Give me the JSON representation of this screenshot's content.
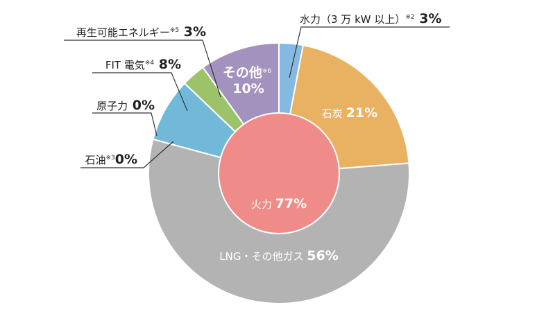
{
  "chart_data": {
    "type": "pie",
    "title": "",
    "outer_ring": [
      {
        "name": "水力（3 万 kW 以上）",
        "note": "※2",
        "value": 3,
        "value_label": "3%",
        "color": "#85b9e1"
      },
      {
        "name": "石炭",
        "note": "",
        "value": 21,
        "value_label": "21%",
        "color": "#e9b262"
      },
      {
        "name": "LNG・その他ガス",
        "note": "",
        "value": 56,
        "value_label": "56%",
        "color": "#b3b3b3"
      },
      {
        "name": "石油",
        "note": "※3",
        "value": 0,
        "value_label": "0%",
        "color": "#9a9a9a"
      },
      {
        "name": "原子力",
        "note": "",
        "value": 0,
        "value_label": "0%",
        "color": "#777777"
      },
      {
        "name": "FIT 電気",
        "note": "※4",
        "value": 8,
        "value_label": "8%",
        "color": "#72b9d9"
      },
      {
        "name": "再生可能エネルギー",
        "note": "※5",
        "value": 3,
        "value_label": "3%",
        "color": "#9dc36a"
      },
      {
        "name": "その他",
        "note": "※6",
        "value": 10,
        "value_label": "10%",
        "color": "#a292bd"
      }
    ],
    "inner_ring": {
      "name": "火力",
      "value": 77,
      "value_label": "77%",
      "color": "#ef8b88"
    },
    "legend": "none"
  }
}
